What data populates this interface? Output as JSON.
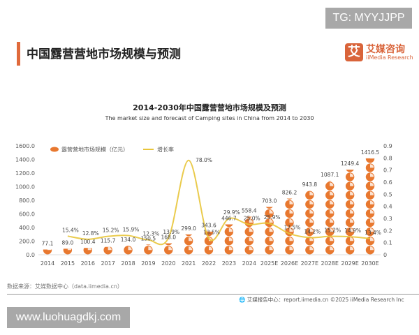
{
  "watermark_top": "TG: MYYJJPP",
  "watermark_bottom": "www.luohuagdkj.com",
  "page_title": "中国露营营地市场规模与预测",
  "logo": {
    "mark": "艾",
    "cn": "艾媒咨询",
    "en": "iiMedia Research"
  },
  "source": "数据来源：艾媒数据中心（data.iimedia.cn）",
  "footer": "艾媒报告中心：report.iimedia.cn     ©2025  iiMedia Research  Inc",
  "colors": {
    "bar": "#e8782f",
    "line": "#e8c53a",
    "accent": "#e06a3b"
  },
  "chart_data": {
    "type": "bar",
    "title": "2014-2030年中国露营营地市场规模及预测",
    "subtitle": "The market size and forecast of Camping sites in China from 2014 to 2030",
    "categories": [
      "2014",
      "2015",
      "2016",
      "2017",
      "2018",
      "2019",
      "2020",
      "2021",
      "2022",
      "2023",
      "2024",
      "2025E",
      "2026E",
      "2027E",
      "2028E",
      "2029E",
      "2030E"
    ],
    "series": [
      {
        "name": "露营营地市场规模（亿元）",
        "type": "pictorial-bar",
        "axis": "left",
        "values": [
          77.1,
          89.0,
          100.4,
          115.7,
          134.0,
          150.5,
          168.0,
          299.0,
          343.6,
          446.7,
          558.4,
          703.0,
          826.2,
          943.8,
          1087.1,
          1249.4,
          1416.5
        ],
        "labels": [
          "77.1",
          "89.0",
          "100.4",
          "115.7",
          "134.0",
          "150.5",
          "168.0",
          "299.0",
          "343.6",
          "446.7",
          "558.4",
          "703.0",
          "826.2",
          "943.8",
          "1087.1",
          "1249.4",
          "1416.5"
        ]
      },
      {
        "name": "增长率",
        "type": "line",
        "axis": "right",
        "values": [
          null,
          0.154,
          0.128,
          0.152,
          0.159,
          0.123,
          0.139,
          0.78,
          0.135,
          0.299,
          0.25,
          0.259,
          0.175,
          0.142,
          0.152,
          0.149,
          0.134
        ],
        "labels": [
          "",
          "15.4%",
          "12.8%",
          "15.2%",
          "15.9%",
          "12.3%",
          "13.9%",
          "78.0%",
          "13.5%",
          "29.9%",
          "25.0%",
          "25.9%",
          "17.5%",
          "14.2%",
          "15.2%",
          "14.9%",
          "13.4%"
        ]
      }
    ],
    "y_left": {
      "ylim": [
        0,
        1600
      ],
      "ticks": [
        "0.0",
        "200.0",
        "400.0",
        "600.0",
        "800.0",
        "1000.0",
        "1200.0",
        "1400.0",
        "1600.0"
      ]
    },
    "y_right": {
      "ylim": [
        0,
        0.9
      ],
      "ticks": [
        "0",
        "0.1",
        "0.2",
        "0.3",
        "0.4",
        "0.5",
        "0.6",
        "0.7",
        "0.8",
        "0.9"
      ]
    },
    "legend": "top-left",
    "grid": false
  }
}
